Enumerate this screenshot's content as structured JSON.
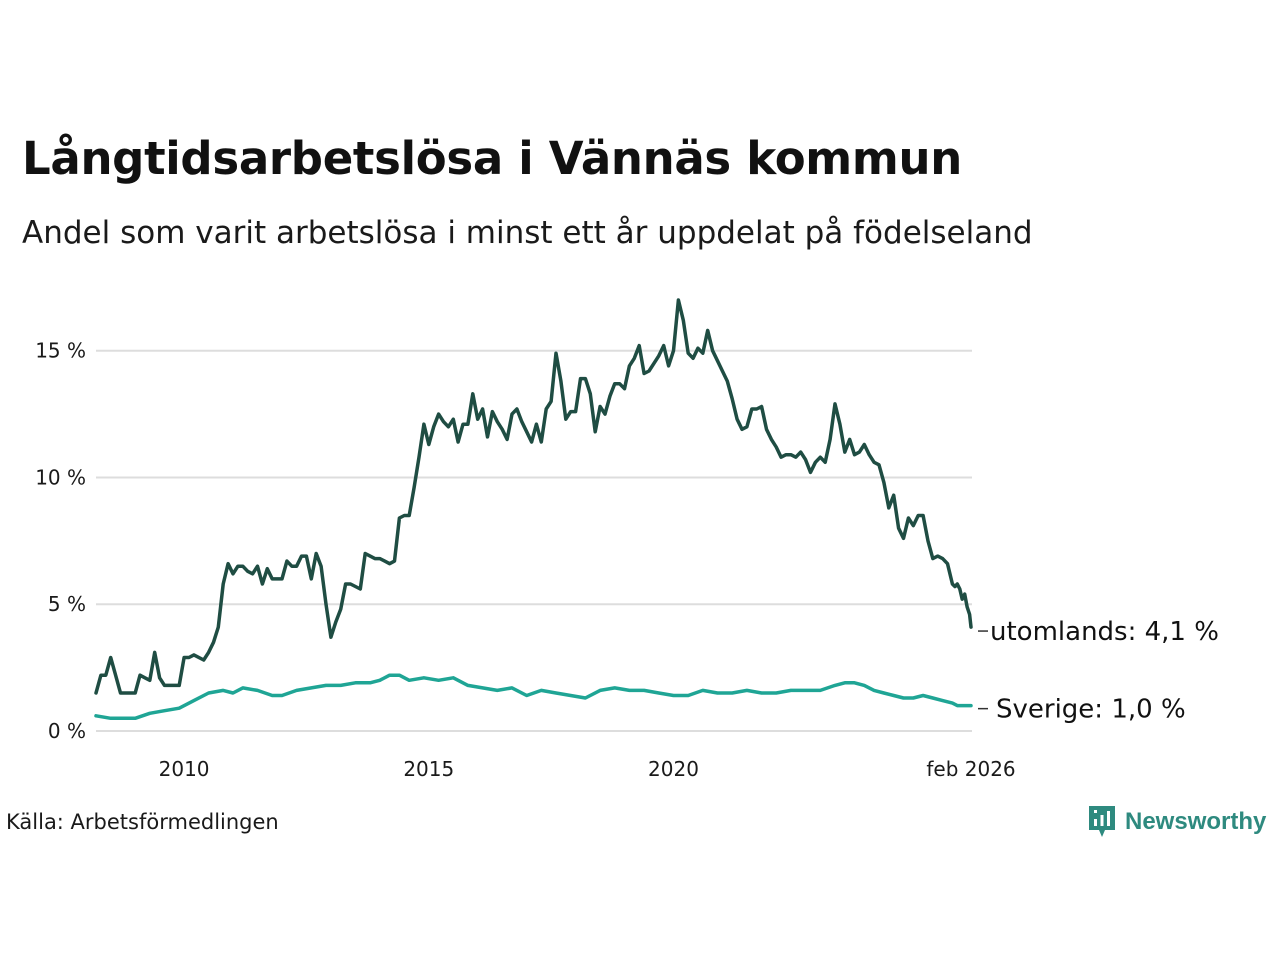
{
  "title": "Långtidsarbetslösa i Vännäs kommun",
  "subtitle": "Andel som varit arbetslösa i minst ett år uppdelat på födelseland",
  "source": "Källa: Arbetsförmedlingen",
  "brand": "Newsworthy",
  "colors": {
    "utomlands": "#1f4d43",
    "sverige": "#1fa595",
    "grid": "#dddddd",
    "brand": "#2e8a7f"
  },
  "chart_data": {
    "type": "line",
    "title": "Långtidsarbetslösa i Vännäs kommun",
    "xlabel": "",
    "ylabel": "",
    "ylim": [
      0,
      17
    ],
    "xlim": [
      2008.2,
      2026.1
    ],
    "y_ticks": [
      {
        "value": 0,
        "label": "0 %"
      },
      {
        "value": 5,
        "label": "5 %"
      },
      {
        "value": 10,
        "label": "10 %"
      },
      {
        "value": 15,
        "label": "15 %"
      }
    ],
    "x_ticks": [
      {
        "value": 2010,
        "label": "2010"
      },
      {
        "value": 2015,
        "label": "2015"
      },
      {
        "value": 2020,
        "label": "2020"
      },
      {
        "value": 2026.08,
        "label": "feb 2026"
      }
    ],
    "series": [
      {
        "name": "utomlands",
        "end_label": "utomlands: 4,1 %",
        "points": [
          [
            2008.2,
            1.5
          ],
          [
            2008.3,
            2.2
          ],
          [
            2008.4,
            2.2
          ],
          [
            2008.5,
            2.9
          ],
          [
            2008.6,
            2.2
          ],
          [
            2008.7,
            1.5
          ],
          [
            2008.9,
            1.5
          ],
          [
            2009.0,
            1.5
          ],
          [
            2009.1,
            2.2
          ],
          [
            2009.2,
            2.1
          ],
          [
            2009.3,
            2.0
          ],
          [
            2009.4,
            3.1
          ],
          [
            2009.5,
            2.1
          ],
          [
            2009.6,
            1.8
          ],
          [
            2009.8,
            1.8
          ],
          [
            2009.9,
            1.8
          ],
          [
            2010.0,
            2.9
          ],
          [
            2010.1,
            2.9
          ],
          [
            2010.2,
            3.0
          ],
          [
            2010.4,
            2.8
          ],
          [
            2010.5,
            3.1
          ],
          [
            2010.6,
            3.5
          ],
          [
            2010.7,
            4.1
          ],
          [
            2010.8,
            5.8
          ],
          [
            2010.9,
            6.6
          ],
          [
            2011.0,
            6.2
          ],
          [
            2011.1,
            6.5
          ],
          [
            2011.2,
            6.5
          ],
          [
            2011.3,
            6.3
          ],
          [
            2011.4,
            6.2
          ],
          [
            2011.5,
            6.5
          ],
          [
            2011.6,
            5.8
          ],
          [
            2011.7,
            6.4
          ],
          [
            2011.8,
            6.0
          ],
          [
            2011.9,
            6.0
          ],
          [
            2012.0,
            6.0
          ],
          [
            2012.1,
            6.7
          ],
          [
            2012.2,
            6.5
          ],
          [
            2012.3,
            6.5
          ],
          [
            2012.4,
            6.9
          ],
          [
            2012.5,
            6.9
          ],
          [
            2012.6,
            6.0
          ],
          [
            2012.7,
            7.0
          ],
          [
            2012.8,
            6.5
          ],
          [
            2012.9,
            5.0
          ],
          [
            2013.0,
            3.7
          ],
          [
            2013.1,
            4.3
          ],
          [
            2013.2,
            4.8
          ],
          [
            2013.3,
            5.8
          ],
          [
            2013.4,
            5.8
          ],
          [
            2013.5,
            5.7
          ],
          [
            2013.6,
            5.6
          ],
          [
            2013.7,
            7.0
          ],
          [
            2013.8,
            6.9
          ],
          [
            2013.9,
            6.8
          ],
          [
            2014.0,
            6.8
          ],
          [
            2014.1,
            6.7
          ],
          [
            2014.2,
            6.6
          ],
          [
            2014.3,
            6.7
          ],
          [
            2014.4,
            8.4
          ],
          [
            2014.5,
            8.5
          ],
          [
            2014.6,
            8.5
          ],
          [
            2014.7,
            9.6
          ],
          [
            2014.8,
            10.8
          ],
          [
            2014.9,
            12.1
          ],
          [
            2015.0,
            11.3
          ],
          [
            2015.1,
            12.0
          ],
          [
            2015.2,
            12.5
          ],
          [
            2015.3,
            12.2
          ],
          [
            2015.4,
            12.0
          ],
          [
            2015.5,
            12.3
          ],
          [
            2015.6,
            11.4
          ],
          [
            2015.7,
            12.1
          ],
          [
            2015.8,
            12.1
          ],
          [
            2015.9,
            13.3
          ],
          [
            2016.0,
            12.3
          ],
          [
            2016.1,
            12.7
          ],
          [
            2016.2,
            11.6
          ],
          [
            2016.3,
            12.6
          ],
          [
            2016.4,
            12.2
          ],
          [
            2016.5,
            11.9
          ],
          [
            2016.6,
            11.5
          ],
          [
            2016.7,
            12.5
          ],
          [
            2016.8,
            12.7
          ],
          [
            2016.9,
            12.2
          ],
          [
            2017.0,
            11.8
          ],
          [
            2017.1,
            11.4
          ],
          [
            2017.2,
            12.1
          ],
          [
            2017.3,
            11.4
          ],
          [
            2017.4,
            12.7
          ],
          [
            2017.5,
            13.0
          ],
          [
            2017.6,
            14.9
          ],
          [
            2017.7,
            13.8
          ],
          [
            2017.8,
            12.3
          ],
          [
            2017.9,
            12.6
          ],
          [
            2018.0,
            12.6
          ],
          [
            2018.1,
            13.9
          ],
          [
            2018.2,
            13.9
          ],
          [
            2018.3,
            13.3
          ],
          [
            2018.4,
            11.8
          ],
          [
            2018.5,
            12.8
          ],
          [
            2018.6,
            12.5
          ],
          [
            2018.7,
            13.2
          ],
          [
            2018.8,
            13.7
          ],
          [
            2018.9,
            13.7
          ],
          [
            2019.0,
            13.5
          ],
          [
            2019.1,
            14.4
          ],
          [
            2019.2,
            14.7
          ],
          [
            2019.3,
            15.2
          ],
          [
            2019.4,
            14.1
          ],
          [
            2019.5,
            14.2
          ],
          [
            2019.6,
            14.5
          ],
          [
            2019.7,
            14.8
          ],
          [
            2019.8,
            15.2
          ],
          [
            2019.9,
            14.4
          ],
          [
            2020.0,
            15.0
          ],
          [
            2020.1,
            17.0
          ],
          [
            2020.2,
            16.2
          ],
          [
            2020.3,
            14.9
          ],
          [
            2020.4,
            14.7
          ],
          [
            2020.5,
            15.1
          ],
          [
            2020.6,
            14.9
          ],
          [
            2020.7,
            15.8
          ],
          [
            2020.8,
            15.0
          ],
          [
            2020.9,
            14.6
          ],
          [
            2021.0,
            14.2
          ],
          [
            2021.1,
            13.8
          ],
          [
            2021.2,
            13.1
          ],
          [
            2021.3,
            12.3
          ],
          [
            2021.4,
            11.9
          ],
          [
            2021.5,
            12.0
          ],
          [
            2021.6,
            12.7
          ],
          [
            2021.7,
            12.7
          ],
          [
            2021.8,
            12.8
          ],
          [
            2021.9,
            11.9
          ],
          [
            2022.0,
            11.5
          ],
          [
            2022.1,
            11.2
          ],
          [
            2022.2,
            10.8
          ],
          [
            2022.3,
            10.9
          ],
          [
            2022.4,
            10.9
          ],
          [
            2022.5,
            10.8
          ],
          [
            2022.6,
            11.0
          ],
          [
            2022.7,
            10.7
          ],
          [
            2022.8,
            10.2
          ],
          [
            2022.9,
            10.6
          ],
          [
            2023.0,
            10.8
          ],
          [
            2023.1,
            10.6
          ],
          [
            2023.2,
            11.5
          ],
          [
            2023.3,
            12.9
          ],
          [
            2023.4,
            12.1
          ],
          [
            2023.5,
            11.0
          ],
          [
            2023.6,
            11.5
          ],
          [
            2023.7,
            10.9
          ],
          [
            2023.8,
            11.0
          ],
          [
            2023.9,
            11.3
          ],
          [
            2024.0,
            10.9
          ],
          [
            2024.1,
            10.6
          ],
          [
            2024.2,
            10.5
          ],
          [
            2024.3,
            9.8
          ],
          [
            2024.4,
            8.8
          ],
          [
            2024.5,
            9.3
          ],
          [
            2024.6,
            8.0
          ],
          [
            2024.7,
            7.6
          ],
          [
            2024.8,
            8.4
          ],
          [
            2024.9,
            8.1
          ],
          [
            2025.0,
            8.5
          ],
          [
            2025.1,
            8.5
          ],
          [
            2025.2,
            7.5
          ],
          [
            2025.3,
            6.8
          ],
          [
            2025.4,
            6.9
          ],
          [
            2025.5,
            6.8
          ],
          [
            2025.6,
            6.6
          ],
          [
            2025.7,
            5.8
          ],
          [
            2025.75,
            5.7
          ],
          [
            2025.8,
            5.8
          ],
          [
            2025.85,
            5.6
          ],
          [
            2025.9,
            5.2
          ],
          [
            2025.95,
            5.4
          ],
          [
            2026.0,
            4.9
          ],
          [
            2026.05,
            4.6
          ],
          [
            2026.08,
            4.1
          ]
        ]
      },
      {
        "name": "Sverige",
        "end_label": "Sverige: 1,0 %",
        "points": [
          [
            2008.2,
            0.6
          ],
          [
            2008.5,
            0.5
          ],
          [
            2008.8,
            0.5
          ],
          [
            2009.0,
            0.5
          ],
          [
            2009.3,
            0.7
          ],
          [
            2009.6,
            0.8
          ],
          [
            2009.9,
            0.9
          ],
          [
            2010.2,
            1.2
          ],
          [
            2010.5,
            1.5
          ],
          [
            2010.8,
            1.6
          ],
          [
            2011.0,
            1.5
          ],
          [
            2011.2,
            1.7
          ],
          [
            2011.5,
            1.6
          ],
          [
            2011.8,
            1.4
          ],
          [
            2012.0,
            1.4
          ],
          [
            2012.3,
            1.6
          ],
          [
            2012.6,
            1.7
          ],
          [
            2012.9,
            1.8
          ],
          [
            2013.2,
            1.8
          ],
          [
            2013.5,
            1.9
          ],
          [
            2013.8,
            1.9
          ],
          [
            2014.0,
            2.0
          ],
          [
            2014.2,
            2.2
          ],
          [
            2014.4,
            2.2
          ],
          [
            2014.6,
            2.0
          ],
          [
            2014.9,
            2.1
          ],
          [
            2015.2,
            2.0
          ],
          [
            2015.5,
            2.1
          ],
          [
            2015.8,
            1.8
          ],
          [
            2016.1,
            1.7
          ],
          [
            2016.4,
            1.6
          ],
          [
            2016.7,
            1.7
          ],
          [
            2017.0,
            1.4
          ],
          [
            2017.3,
            1.6
          ],
          [
            2017.6,
            1.5
          ],
          [
            2017.9,
            1.4
          ],
          [
            2018.2,
            1.3
          ],
          [
            2018.5,
            1.6
          ],
          [
            2018.8,
            1.7
          ],
          [
            2019.1,
            1.6
          ],
          [
            2019.4,
            1.6
          ],
          [
            2019.7,
            1.5
          ],
          [
            2020.0,
            1.4
          ],
          [
            2020.3,
            1.4
          ],
          [
            2020.6,
            1.6
          ],
          [
            2020.9,
            1.5
          ],
          [
            2021.2,
            1.5
          ],
          [
            2021.5,
            1.6
          ],
          [
            2021.8,
            1.5
          ],
          [
            2022.1,
            1.5
          ],
          [
            2022.4,
            1.6
          ],
          [
            2022.7,
            1.6
          ],
          [
            2023.0,
            1.6
          ],
          [
            2023.3,
            1.8
          ],
          [
            2023.5,
            1.9
          ],
          [
            2023.7,
            1.9
          ],
          [
            2023.9,
            1.8
          ],
          [
            2024.1,
            1.6
          ],
          [
            2024.3,
            1.5
          ],
          [
            2024.5,
            1.4
          ],
          [
            2024.7,
            1.3
          ],
          [
            2024.9,
            1.3
          ],
          [
            2025.1,
            1.4
          ],
          [
            2025.3,
            1.3
          ],
          [
            2025.5,
            1.2
          ],
          [
            2025.7,
            1.1
          ],
          [
            2025.8,
            1.0
          ],
          [
            2025.9,
            1.0
          ],
          [
            2026.0,
            1.0
          ],
          [
            2026.08,
            1.0
          ]
        ]
      }
    ]
  }
}
